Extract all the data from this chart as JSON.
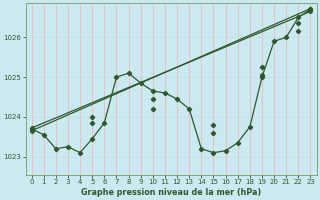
{
  "xlabel": "Graphe pression niveau de la mer (hPa)",
  "bg_color": "#cce8f0",
  "grid_color_v": "#f0b8b8",
  "grid_color_h": "#c8dde8",
  "line_color": "#2d5a2d",
  "xlim": [
    -0.5,
    23.5
  ],
  "ylim": [
    1022.55,
    1026.85
  ],
  "yticks": [
    1023,
    1024,
    1025,
    1026
  ],
  "xticks": [
    0,
    1,
    2,
    3,
    4,
    5,
    6,
    7,
    8,
    9,
    10,
    11,
    12,
    13,
    14,
    15,
    16,
    17,
    18,
    19,
    20,
    21,
    22,
    23
  ],
  "line1_x": [
    0,
    1,
    2,
    3,
    4,
    5,
    6,
    7,
    8,
    9,
    10,
    11,
    12,
    13,
    14,
    15,
    16,
    17,
    18,
    19,
    20,
    21,
    22,
    23
  ],
  "line1_y": [
    1023.7,
    1023.55,
    1023.2,
    1023.25,
    1023.1,
    1023.45,
    1023.85,
    1025.0,
    1025.1,
    1024.85,
    1024.65,
    1024.6,
    1024.45,
    1024.2,
    1023.2,
    1023.1,
    1023.15,
    1023.35,
    1023.75,
    1025.0,
    1025.9,
    1026.0,
    1026.5,
    1026.7
  ],
  "line2_x": [
    0,
    23
  ],
  "line2_y": [
    1023.65,
    1026.72
  ],
  "line3_x": [
    0,
    23
  ],
  "line3_y": [
    1023.72,
    1026.65
  ],
  "marker_x1": [
    0,
    1,
    2,
    3,
    4,
    5,
    6,
    7,
    8,
    9,
    10,
    11,
    12,
    13,
    14,
    15,
    16,
    17,
    18,
    19,
    20,
    21,
    22,
    23
  ],
  "marker_y1": [
    1023.7,
    1023.55,
    1023.2,
    1023.25,
    1023.1,
    1023.45,
    1023.85,
    1025.0,
    1025.1,
    1024.85,
    1024.65,
    1024.6,
    1024.45,
    1024.2,
    1023.2,
    1023.1,
    1023.15,
    1023.35,
    1023.75,
    1025.0,
    1025.9,
    1026.0,
    1026.5,
    1026.7
  ],
  "marker_x2": [
    0,
    5,
    10,
    15,
    19,
    22,
    23
  ],
  "marker_y2": [
    1023.65,
    1024.0,
    1024.45,
    1023.8,
    1025.25,
    1026.35,
    1026.72
  ],
  "marker_x3": [
    0,
    5,
    10,
    15,
    19,
    22,
    23
  ],
  "marker_y3": [
    1023.72,
    1023.85,
    1024.2,
    1023.6,
    1025.05,
    1026.15,
    1026.65
  ]
}
